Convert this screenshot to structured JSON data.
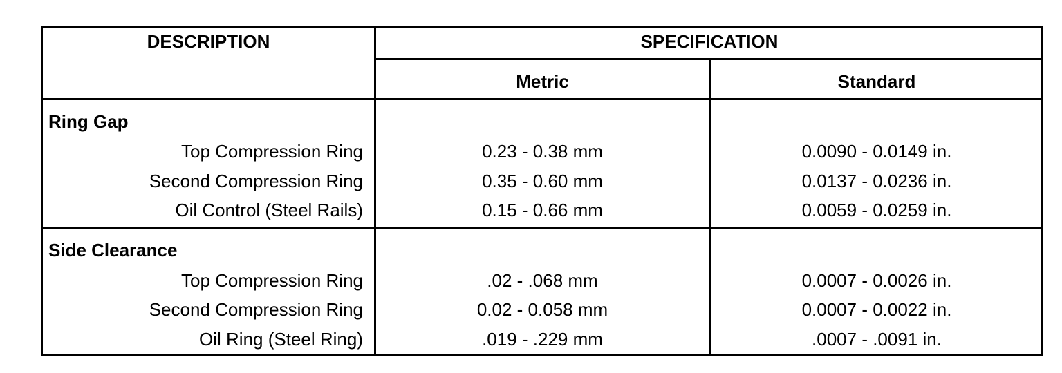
{
  "header": {
    "description": "DESCRIPTION",
    "specification": "SPECIFICATION",
    "metric": "Metric",
    "standard": "Standard"
  },
  "sections": [
    {
      "title": "Ring Gap",
      "rows": [
        {
          "label": "Top Compression Ring",
          "metric": "0.23 - 0.38 mm",
          "standard": "0.0090 - 0.0149 in."
        },
        {
          "label": "Second Compression Ring",
          "metric": "0.35 - 0.60 mm",
          "standard": "0.0137 - 0.0236 in."
        },
        {
          "label": "Oil Control (Steel Rails)",
          "metric": "0.15 - 0.66 mm",
          "standard": "0.0059 - 0.0259 in."
        }
      ]
    },
    {
      "title": "Side Clearance",
      "rows": [
        {
          "label": "Top Compression Ring",
          "metric": ".02 - .068 mm",
          "standard": "0.0007 - 0.0026 in."
        },
        {
          "label": "Second Compression Ring",
          "metric": "0.02 - 0.058 mm",
          "standard": "0.0007 - 0.0022 in."
        },
        {
          "label": "Oil Ring (Steel Ring)",
          "metric": ".019 - .229 mm",
          "standard": ".0007 - .0091 in."
        }
      ]
    }
  ]
}
